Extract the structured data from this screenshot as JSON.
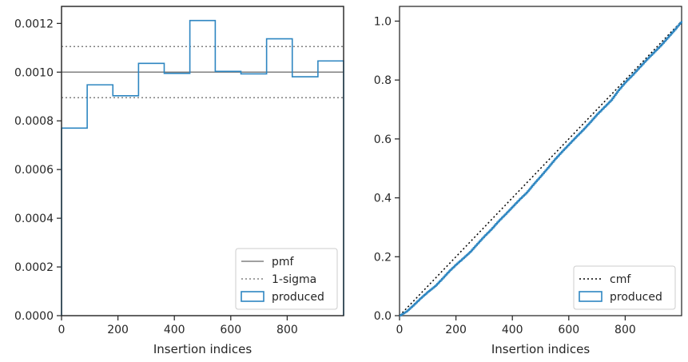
{
  "colors": {
    "produced": "#2e86c1",
    "reference": "#808080",
    "cmf": "#000000",
    "axes": "#262626"
  },
  "chart_data": [
    {
      "type": "histogram",
      "xlabel": "Insertion indices",
      "ylabel": "",
      "xlim": [
        0,
        1000
      ],
      "ylim": [
        0,
        0.00127
      ],
      "xticks": [
        0,
        200,
        400,
        600,
        800
      ],
      "yticks": [
        0,
        0.0002,
        0.0004,
        0.0006,
        0.0008,
        0.001,
        0.0012
      ],
      "xtick_labels": [
        "0",
        "200",
        "400",
        "600",
        "800"
      ],
      "ytick_labels": [
        "0.0000",
        "0.0002",
        "0.0004",
        "0.0006",
        "0.0008",
        "0.0010",
        "0.0012"
      ],
      "bin_edges": [
        0,
        91,
        182,
        273,
        364,
        455,
        545,
        636,
        727,
        818,
        909,
        1000
      ],
      "series": [
        {
          "name": "produced",
          "values": [
            0.00077,
            0.000948,
            0.000903,
            0.001036,
            0.000995,
            0.001212,
            0.001003,
            0.000993,
            0.001137,
            0.000981,
            0.001046
          ]
        }
      ],
      "reference_lines": [
        {
          "name": "pmf",
          "y": 0.001,
          "style": "solid"
        },
        {
          "name": "1-sigma",
          "y": 0.001105,
          "style": "dotted"
        },
        {
          "name": "1-sigma",
          "y": 0.000895,
          "style": "dotted",
          "legend": false
        }
      ],
      "legend": {
        "position": "lower-right",
        "entries": [
          "pmf",
          "1-sigma",
          "produced"
        ]
      },
      "grid": false
    },
    {
      "type": "line",
      "xlabel": "Insertion indices",
      "ylabel": "",
      "xlim": [
        0,
        1000
      ],
      "ylim": [
        0,
        1.05
      ],
      "xticks": [
        0,
        200,
        400,
        600,
        800
      ],
      "yticks": [
        0,
        0.2,
        0.4,
        0.6,
        0.8,
        1.0
      ],
      "xtick_labels": [
        "0",
        "200",
        "400",
        "600",
        "800"
      ],
      "ytick_labels": [
        "0.0",
        "0.2",
        "0.4",
        "0.6",
        "0.8",
        "1.0"
      ],
      "series": [
        {
          "name": "cmf",
          "style": "dotted",
          "x": [
            0,
            1000
          ],
          "y": [
            0,
            1.0
          ]
        },
        {
          "name": "produced",
          "style": "step",
          "x": [
            0,
            25,
            50,
            75,
            100,
            125,
            150,
            175,
            200,
            225,
            250,
            275,
            300,
            325,
            350,
            375,
            400,
            425,
            450,
            475,
            500,
            525,
            550,
            575,
            600,
            625,
            650,
            675,
            700,
            725,
            750,
            775,
            800,
            825,
            850,
            875,
            900,
            925,
            950,
            975,
            1000
          ],
          "y": [
            0,
            0.015,
            0.037,
            0.06,
            0.081,
            0.1,
            0.125,
            0.151,
            0.174,
            0.195,
            0.217,
            0.244,
            0.27,
            0.294,
            0.321,
            0.345,
            0.37,
            0.395,
            0.418,
            0.447,
            0.474,
            0.502,
            0.531,
            0.557,
            0.582,
            0.607,
            0.631,
            0.657,
            0.684,
            0.708,
            0.732,
            0.765,
            0.793,
            0.817,
            0.843,
            0.869,
            0.893,
            0.917,
            0.944,
            0.971,
            1.0
          ]
        }
      ],
      "legend": {
        "position": "lower-right",
        "entries": [
          "cmf",
          "produced"
        ]
      },
      "grid": false
    }
  ]
}
